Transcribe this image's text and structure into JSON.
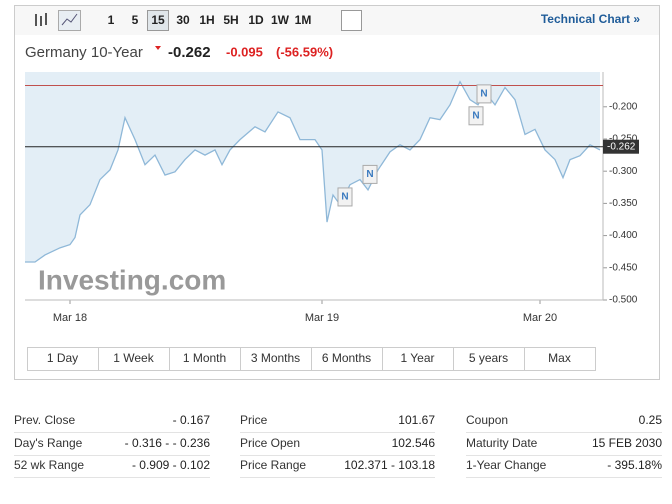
{
  "toolbar": {
    "intervals": [
      "1",
      "5",
      "15",
      "30",
      "1H",
      "5H",
      "1D",
      "1W",
      "1M"
    ],
    "selected": 2,
    "link": "Technical Chart »"
  },
  "header": {
    "name": "Germany 10-Year",
    "last": "-0.262",
    "change": "-0.095",
    "change_pct": "(-56.59%)"
  },
  "chart_data": {
    "type": "line",
    "watermark": "Investing.com",
    "color": "#8fb8d8",
    "area_color": "#e3eef6",
    "x": [
      0,
      10,
      20,
      35,
      45,
      50,
      55,
      65,
      75,
      85,
      93,
      100,
      110,
      120,
      130,
      140,
      150,
      160,
      170,
      180,
      190,
      197,
      205,
      215,
      230,
      240,
      253,
      265,
      275,
      290,
      297,
      302,
      308,
      315,
      325,
      335,
      343,
      353,
      365,
      375,
      385,
      395,
      405,
      415,
      425,
      435,
      445,
      453,
      460,
      470,
      480,
      490,
      500,
      510,
      520,
      530,
      538,
      545,
      555,
      565,
      575
    ],
    "values": [
      -0.441,
      -0.441,
      -0.43,
      -0.419,
      -0.414,
      -0.403,
      -0.368,
      -0.352,
      -0.313,
      -0.298,
      -0.267,
      -0.217,
      -0.251,
      -0.29,
      -0.275,
      -0.306,
      -0.301,
      -0.282,
      -0.267,
      -0.275,
      -0.267,
      -0.29,
      -0.267,
      -0.251,
      -0.231,
      -0.239,
      -0.208,
      -0.217,
      -0.251,
      -0.251,
      -0.267,
      -0.379,
      -0.337,
      -0.352,
      -0.321,
      -0.313,
      -0.329,
      -0.298,
      -0.27,
      -0.259,
      -0.267,
      -0.251,
      -0.217,
      -0.22,
      -0.197,
      -0.161,
      -0.189,
      -0.197,
      -0.177,
      -0.197,
      -0.17,
      -0.189,
      -0.243,
      -0.235,
      -0.267,
      -0.282,
      -0.31,
      -0.282,
      -0.276,
      -0.259,
      -0.267
    ],
    "xlim": [
      0,
      578
    ],
    "xticks": [
      {
        "value": 45,
        "label": "Mar 18"
      },
      {
        "value": 297,
        "label": "Mar 19"
      },
      {
        "value": 515,
        "label": "Mar 20"
      }
    ],
    "ylim": [
      -0.5,
      -0.146
    ],
    "yticks": [
      {
        "value": -0.2,
        "label": "-0.200"
      },
      {
        "value": -0.25,
        "label": "-0.250"
      },
      {
        "value": -0.3,
        "label": "-0.300"
      },
      {
        "value": -0.35,
        "label": "-0.350"
      },
      {
        "value": -0.4,
        "label": "-0.400"
      },
      {
        "value": -0.45,
        "label": "-0.450"
      },
      {
        "value": -0.5,
        "label": "-0.500"
      }
    ],
    "reference_lines": [
      {
        "value": -0.167,
        "color": "#c0504d"
      },
      {
        "value": -0.262,
        "color": "#222",
        "label": "-0.262"
      }
    ],
    "annotations": [
      {
        "x": 320,
        "y": -0.34,
        "label": "N"
      },
      {
        "x": 345,
        "y": -0.305,
        "label": "N"
      },
      {
        "x": 451,
        "y": -0.214,
        "label": "N"
      },
      {
        "x": 459,
        "y": -0.18,
        "label": "N"
      }
    ]
  },
  "ranges": [
    "1 Day",
    "1 Week",
    "1 Month",
    "3 Months",
    "6 Months",
    "1 Year",
    "5 years",
    "Max"
  ],
  "stats": [
    [
      [
        "Prev. Close",
        "- 0.167"
      ],
      [
        "Price",
        "101.67"
      ],
      [
        "Coupon",
        "0.25"
      ]
    ],
    [
      [
        "Day's Range",
        "- 0.316 - - 0.236"
      ],
      [
        "Price Open",
        "102.546"
      ],
      [
        "Maturity Date",
        "15 FEB 2030"
      ]
    ],
    [
      [
        "52 wk Range",
        "- 0.909 - 0.102"
      ],
      [
        "Price Range",
        "102.371 - 103.18"
      ],
      [
        "1-Year Change",
        "- 395.18%"
      ]
    ]
  ]
}
